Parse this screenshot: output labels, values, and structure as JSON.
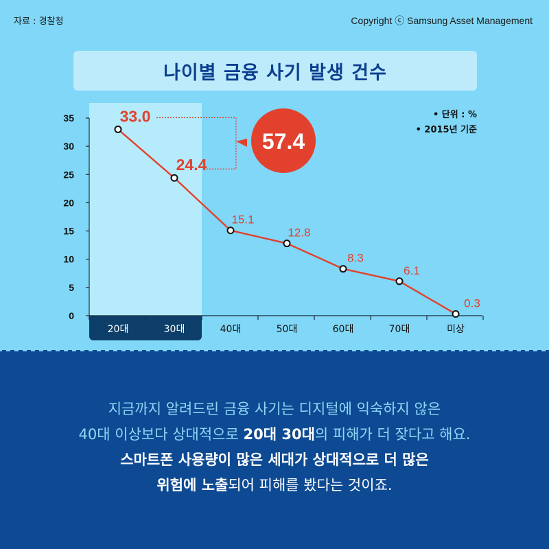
{
  "header": {
    "source": "자료 : 경찰청",
    "copyright": "Copyright ⓒ Samsung Asset Management"
  },
  "title": "나이별 금융 사기 발생 건수",
  "notes": [
    "• 단위 : %",
    "• 2015년 기준"
  ],
  "callout": {
    "value": "57.4",
    "color": "#e2412e"
  },
  "colors": {
    "background": "#80d7f7",
    "highlight": "#b5ebfb",
    "line": "#e2412e",
    "dark_navy": "#0d3f6a",
    "caption_bg": "#0d4a93"
  },
  "chart_data": {
    "type": "line",
    "categories": [
      "20대",
      "30대",
      "40대",
      "50대",
      "60대",
      "70대",
      "미상"
    ],
    "values": [
      33.0,
      24.4,
      15.1,
      12.8,
      8.3,
      6.1,
      0.3
    ],
    "value_labels": [
      "33.0",
      "24.4",
      "15.1",
      "12.8",
      "8.3",
      "6.1",
      "0.3"
    ],
    "ylim": [
      0,
      35
    ],
    "yticks": [
      0,
      5,
      10,
      15,
      20,
      25,
      30,
      35
    ],
    "highlighted_categories": [
      "20대",
      "30대"
    ],
    "grid": false
  },
  "caption": {
    "l1": "지금까지 알려드린 금융 사기는 디지털에 익숙하지 않은",
    "l2a": "40대 이상보다 상대적으로 ",
    "l2b": "20대 30대",
    "l2c": "의 피해가 더 잦다고 해요.",
    "l3": "스마트폰 사용량이 많은 세대가 상대적으로 더 많은",
    "l4a": "위험에 노출",
    "l4b": "되어 피해를 봤다는 것이죠."
  }
}
